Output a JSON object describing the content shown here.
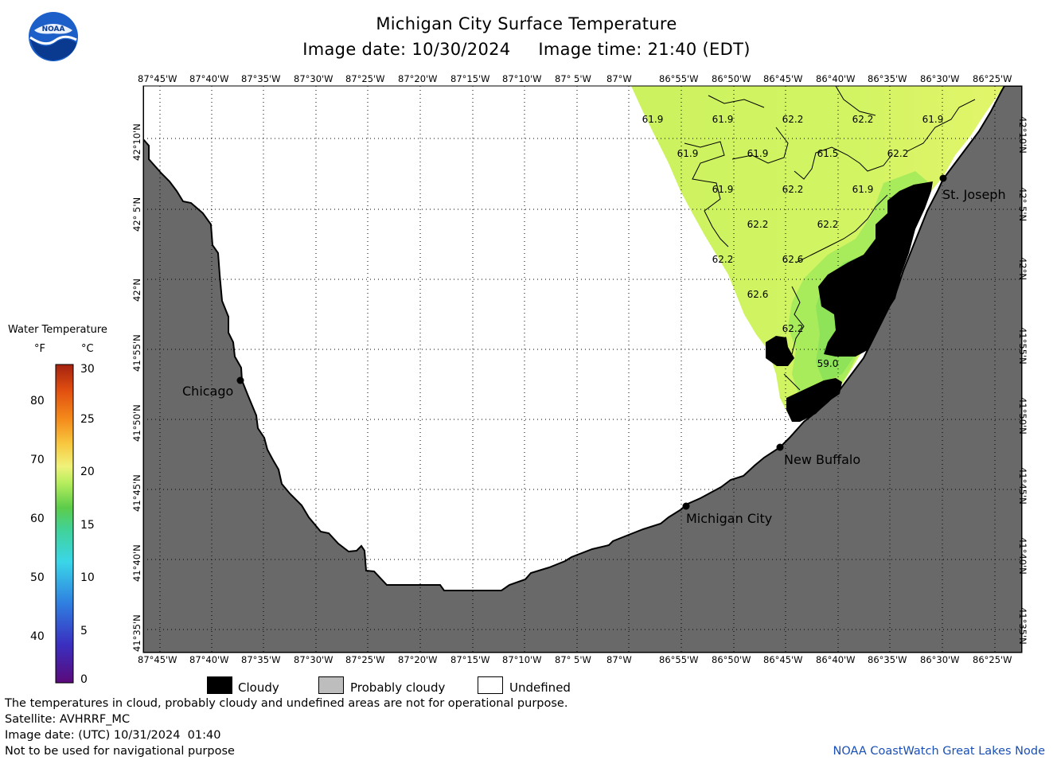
{
  "header": {
    "title": "Michigan City Surface Temperature",
    "date_line": "Image date: 10/30/2024     Image time: 21:40 (EDT)"
  },
  "map": {
    "lon_labels": [
      "87°45'W",
      "87°40'W",
      "87°35'W",
      "87°30'W",
      "87°25'W",
      "87°20'W",
      "87°15'W",
      "87°10'W",
      "87° 5'W",
      "87°W",
      "86°55'W",
      "86°50'W",
      "86°45'W",
      "86°40'W",
      "86°35'W",
      "86°30'W",
      "86°25'W"
    ],
    "lat_labels": [
      "42°10'N",
      "42° 5'N",
      "42°N",
      "41°55'N",
      "41°50'N",
      "41°45'N",
      "41°40'N",
      "41°35'N"
    ],
    "cities": [
      {
        "name": "Chicago"
      },
      {
        "name": "St. Joseph"
      },
      {
        "name": "New Buffalo"
      },
      {
        "name": "Michigan City"
      }
    ],
    "temperature_labels": [
      "61.9",
      "61.9",
      "62.2",
      "62.2",
      "61.9",
      "61.9",
      "61.9",
      "61.5",
      "62.2",
      "61.9",
      "62.2",
      "61.9",
      "62.2",
      "62.2",
      "62.2",
      "62.6",
      "62.6",
      "62.2",
      "59.0"
    ],
    "colors": {
      "land": "#696969",
      "cloud": "#000000",
      "water_warm": "#d7f564",
      "water_mid": "#b6ee5e",
      "water_cool": "#96e85a",
      "grid": "#000000"
    }
  },
  "colorbar": {
    "title": "Water Temperature",
    "unit_f": "°F",
    "unit_c": "°C",
    "f_ticks": [
      "80",
      "70",
      "60",
      "50",
      "40"
    ],
    "c_ticks": [
      "30",
      "25",
      "20",
      "15",
      "10",
      "5",
      "0"
    ]
  },
  "legend": {
    "cloudy": "Cloudy",
    "probably_cloudy": "Probably cloudy",
    "undefined": "Undefined"
  },
  "footer": {
    "line1": "The temperatures in cloud, probably cloudy and undefined areas are not for operational purpose.",
    "line2": "Satellite: AVHRRF_MC",
    "line3": "Image date: (UTC) 10/31/2024  01:40",
    "line4": "Not to be used for navigational purpose",
    "credit": "NOAA CoastWatch Great Lakes Node"
  }
}
